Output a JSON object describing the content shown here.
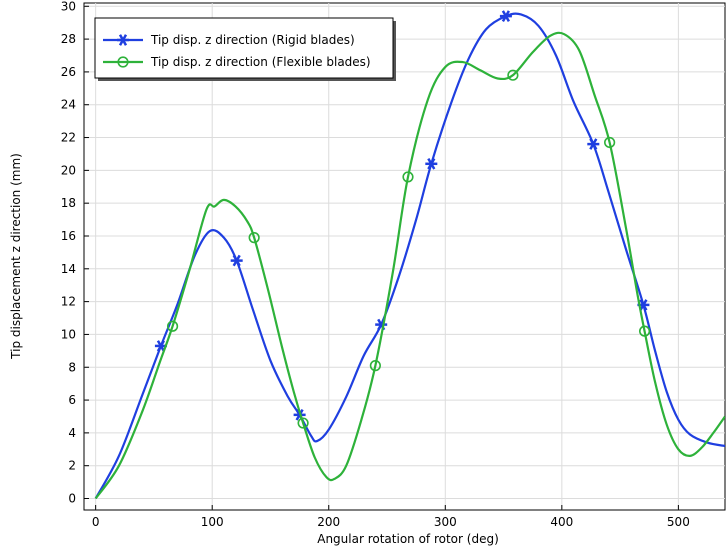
{
  "chart_data": {
    "type": "line",
    "title": "",
    "xlabel": "Angular rotation of rotor (deg)",
    "ylabel": "Tip displacement z direction (mm)",
    "xlim": [
      -10,
      540
    ],
    "ylim": [
      -0.7,
      30.2
    ],
    "x_ticks": [
      0,
      100,
      200,
      300,
      400,
      500
    ],
    "y_ticks": [
      0,
      2,
      4,
      6,
      8,
      10,
      12,
      14,
      16,
      18,
      20,
      22,
      24,
      26,
      28,
      30
    ],
    "grid": true,
    "legend_position": "top-left",
    "series": [
      {
        "name": "Tip disp. z direction (Rigid blades)",
        "color": "#1f3fe0",
        "marker": "asterisk",
        "points": [
          [
            0,
            0
          ],
          [
            20,
            2.6
          ],
          [
            40,
            6.3
          ],
          [
            56,
            9.3
          ],
          [
            70,
            11.8
          ],
          [
            85,
            14.8
          ],
          [
            98,
            16.3
          ],
          [
            110,
            15.9
          ],
          [
            121,
            14.5
          ],
          [
            135,
            11.5
          ],
          [
            150,
            8.4
          ],
          [
            165,
            6.2
          ],
          [
            175,
            5.1
          ],
          [
            185,
            3.8
          ],
          [
            190,
            3.5
          ],
          [
            200,
            4.2
          ],
          [
            215,
            6.2
          ],
          [
            230,
            8.7
          ],
          [
            245,
            10.6
          ],
          [
            260,
            13.5
          ],
          [
            275,
            17.0
          ],
          [
            288,
            20.4
          ],
          [
            305,
            24.1
          ],
          [
            320,
            26.8
          ],
          [
            335,
            28.6
          ],
          [
            352,
            29.4
          ],
          [
            365,
            29.5
          ],
          [
            380,
            28.8
          ],
          [
            395,
            27.0
          ],
          [
            410,
            24.2
          ],
          [
            427,
            21.6
          ],
          [
            440,
            18.7
          ],
          [
            455,
            15.2
          ],
          [
            470,
            11.8
          ],
          [
            480,
            9.0
          ],
          [
            490,
            6.5
          ],
          [
            500,
            4.8
          ],
          [
            510,
            3.9
          ],
          [
            525,
            3.4
          ],
          [
            540,
            3.2
          ]
        ],
        "markers": [
          [
            56,
            9.3
          ],
          [
            121,
            14.5
          ],
          [
            175,
            5.1
          ],
          [
            245,
            10.6
          ],
          [
            288,
            20.4
          ],
          [
            352,
            29.4
          ],
          [
            427,
            21.6
          ],
          [
            470,
            11.8
          ]
        ]
      },
      {
        "name": "Tip disp. z direction (Flexible blades)",
        "color": "#2eb23a",
        "marker": "circle",
        "points": [
          [
            0,
            0
          ],
          [
            20,
            2.0
          ],
          [
            40,
            5.3
          ],
          [
            55,
            8.3
          ],
          [
            66,
            10.5
          ],
          [
            80,
            13.8
          ],
          [
            95,
            17.6
          ],
          [
            102,
            17.8
          ],
          [
            110,
            18.2
          ],
          [
            120,
            17.8
          ],
          [
            130,
            16.9
          ],
          [
            136,
            15.9
          ],
          [
            148,
            12.7
          ],
          [
            160,
            9.2
          ],
          [
            170,
            6.5
          ],
          [
            178,
            4.6
          ],
          [
            188,
            2.5
          ],
          [
            198,
            1.3
          ],
          [
            205,
            1.2
          ],
          [
            215,
            2.0
          ],
          [
            228,
            4.8
          ],
          [
            240,
            8.1
          ],
          [
            255,
            13.8
          ],
          [
            268,
            19.6
          ],
          [
            285,
            24.3
          ],
          [
            300,
            26.3
          ],
          [
            315,
            26.6
          ],
          [
            330,
            26.1
          ],
          [
            345,
            25.6
          ],
          [
            358,
            25.8
          ],
          [
            375,
            27.2
          ],
          [
            390,
            28.2
          ],
          [
            402,
            28.3
          ],
          [
            415,
            27.3
          ],
          [
            428,
            24.6
          ],
          [
            441,
            21.7
          ],
          [
            455,
            16.5
          ],
          [
            465,
            12.4
          ],
          [
            471,
            10.2
          ],
          [
            480,
            7.1
          ],
          [
            490,
            4.5
          ],
          [
            500,
            3.0
          ],
          [
            510,
            2.6
          ],
          [
            520,
            3.1
          ],
          [
            530,
            4.0
          ],
          [
            540,
            5.0
          ]
        ],
        "markers": [
          [
            66,
            10.5
          ],
          [
            136,
            15.9
          ],
          [
            178,
            4.6
          ],
          [
            240,
            8.1
          ],
          [
            268,
            19.6
          ],
          [
            358,
            25.8
          ],
          [
            441,
            21.7
          ],
          [
            471,
            10.2
          ]
        ]
      }
    ]
  }
}
